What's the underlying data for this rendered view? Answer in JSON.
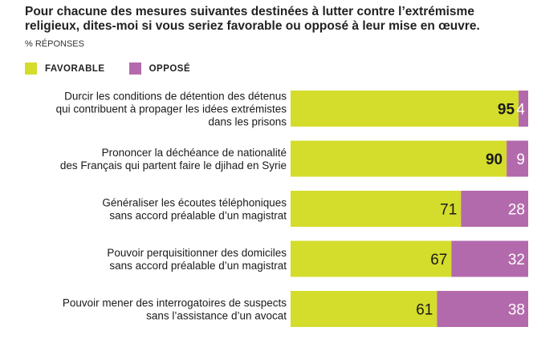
{
  "title": "Pour chacune des mesures suivantes destinées à lutter contre l’extrémisme religieux, dites-moi si vous seriez favorable ou opposé à leur mise en œuvre.",
  "subtitle": "% RÉPONSES",
  "legend": {
    "favorable": "FAVORABLE",
    "oppose": "OPPOSÉ"
  },
  "colors": {
    "favorable": "#d4dc2c",
    "oppose": "#b36aac"
  },
  "chart_data": {
    "type": "bar",
    "orientation": "horizontal",
    "stacked": true,
    "title": "Pour chacune des mesures suivantes destinées à lutter contre l’extrémisme religieux, dites-moi si vous seriez favorable ou opposé à leur mise en œuvre.",
    "subtitle": "% RÉPONSES",
    "legend_position": "top-left",
    "grid": false,
    "xlim": [
      0,
      100
    ],
    "categories": [
      [
        "Durcir les conditions de détention des détenus",
        "qui contribuent à propager les idées extrémistes",
        "dans les prisons"
      ],
      [
        "Prononcer la déchéance de nationalité",
        "des Français qui partent faire le djihad en Syrie"
      ],
      [
        "Généraliser les écoutes téléphoniques",
        "sans accord préalable d’un magistrat"
      ],
      [
        "Pouvoir perquisitionner des domiciles",
        "sans accord préalable d’un magistrat"
      ],
      [
        "Pouvoir mener des interrogatoires de suspects",
        "sans l’assistance d’un avocat"
      ]
    ],
    "series": [
      {
        "name": "FAVORABLE",
        "color": "#d4dc2c",
        "values": [
          95,
          90,
          71,
          67,
          61
        ]
      },
      {
        "name": "OPPOSÉ",
        "color": "#b36aac",
        "values": [
          4,
          9,
          28,
          32,
          38
        ]
      }
    ]
  }
}
